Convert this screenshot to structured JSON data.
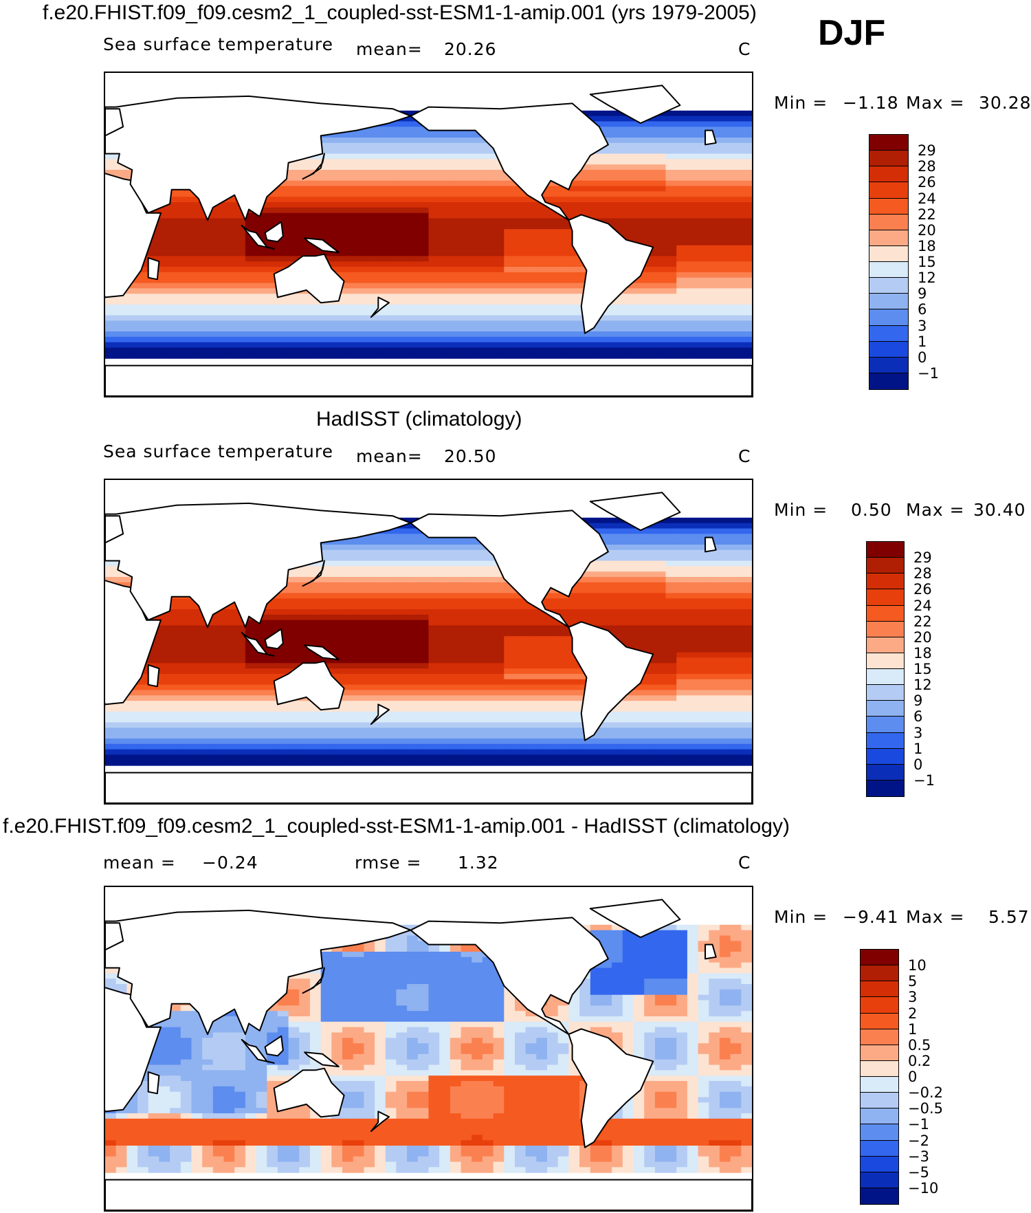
{
  "season": "DJF",
  "panels": [
    {
      "title": "f.e20.FHIST.f09_f09.cesm2_1_coupled-sst-ESM1-1-amip.001 (yrs 1979-2005)",
      "subtitle_left": "Sea surface temperature",
      "mean_label": "mean=",
      "mean_value": "20.26",
      "units": "C",
      "min_label": "Min =",
      "min_value": "−1.18",
      "max_label": "Max =",
      "max_value": "30.28",
      "colorbar": {
        "labels": [
          "29",
          "28",
          "26",
          "24",
          "22",
          "20",
          "18",
          "15",
          "12",
          "9",
          "6",
          "3",
          "1",
          "0",
          "−1"
        ],
        "colors": [
          "#800000",
          "#b01e04",
          "#d42e06",
          "#e8400d",
          "#f55a20",
          "#fb8050",
          "#fcaa85",
          "#fde3d2",
          "#d9eaf8",
          "#b4ccf4",
          "#8fb2f0",
          "#5c8def",
          "#3367ee",
          "#1a49e0",
          "#0b2eb8",
          "#001487"
        ]
      }
    },
    {
      "title": "HadISST (climatology)",
      "subtitle_left": "Sea surface temperature",
      "mean_label": "mean=",
      "mean_value": "20.50",
      "units": "C",
      "min_label": "Min =",
      "min_value": "0.50",
      "max_label": "Max =",
      "max_value": "30.40",
      "colorbar": {
        "labels": [
          "29",
          "28",
          "26",
          "24",
          "22",
          "20",
          "18",
          "15",
          "12",
          "9",
          "6",
          "3",
          "1",
          "0",
          "−1"
        ],
        "colors": [
          "#800000",
          "#b01e04",
          "#d42e06",
          "#e8400d",
          "#f55a20",
          "#fb8050",
          "#fcaa85",
          "#fde3d2",
          "#d9eaf8",
          "#b4ccf4",
          "#8fb2f0",
          "#5c8def",
          "#3367ee",
          "#1a49e0",
          "#0b2eb8",
          "#001487"
        ]
      }
    },
    {
      "title": "f.e20.FHIST.f09_f09.cesm2_1_coupled-sst-ESM1-1-amip.001 - HadISST (climatology)",
      "subtitle_left": "mean =",
      "mean_label": "−0.24",
      "mean_value": "rmse =",
      "rmse_value": "1.32",
      "units": "C",
      "min_label": "Min =",
      "min_value": "−9.41",
      "max_label": "Max =",
      "max_value": "5.57",
      "colorbar": {
        "labels": [
          "10",
          "5",
          "3",
          "2",
          "1",
          "0.5",
          "0.2",
          "0",
          "−0.2",
          "−0.5",
          "−1",
          "−2",
          "−3",
          "−5",
          "−10"
        ],
        "colors": [
          "#800000",
          "#b01e04",
          "#d42e06",
          "#e8400d",
          "#f55a20",
          "#fb8050",
          "#fcaa85",
          "#fde3d2",
          "#d9eaf8",
          "#b4ccf4",
          "#8fb2f0",
          "#5c8def",
          "#3367ee",
          "#1a49e0",
          "#0b2eb8",
          "#001487"
        ]
      }
    }
  ]
}
